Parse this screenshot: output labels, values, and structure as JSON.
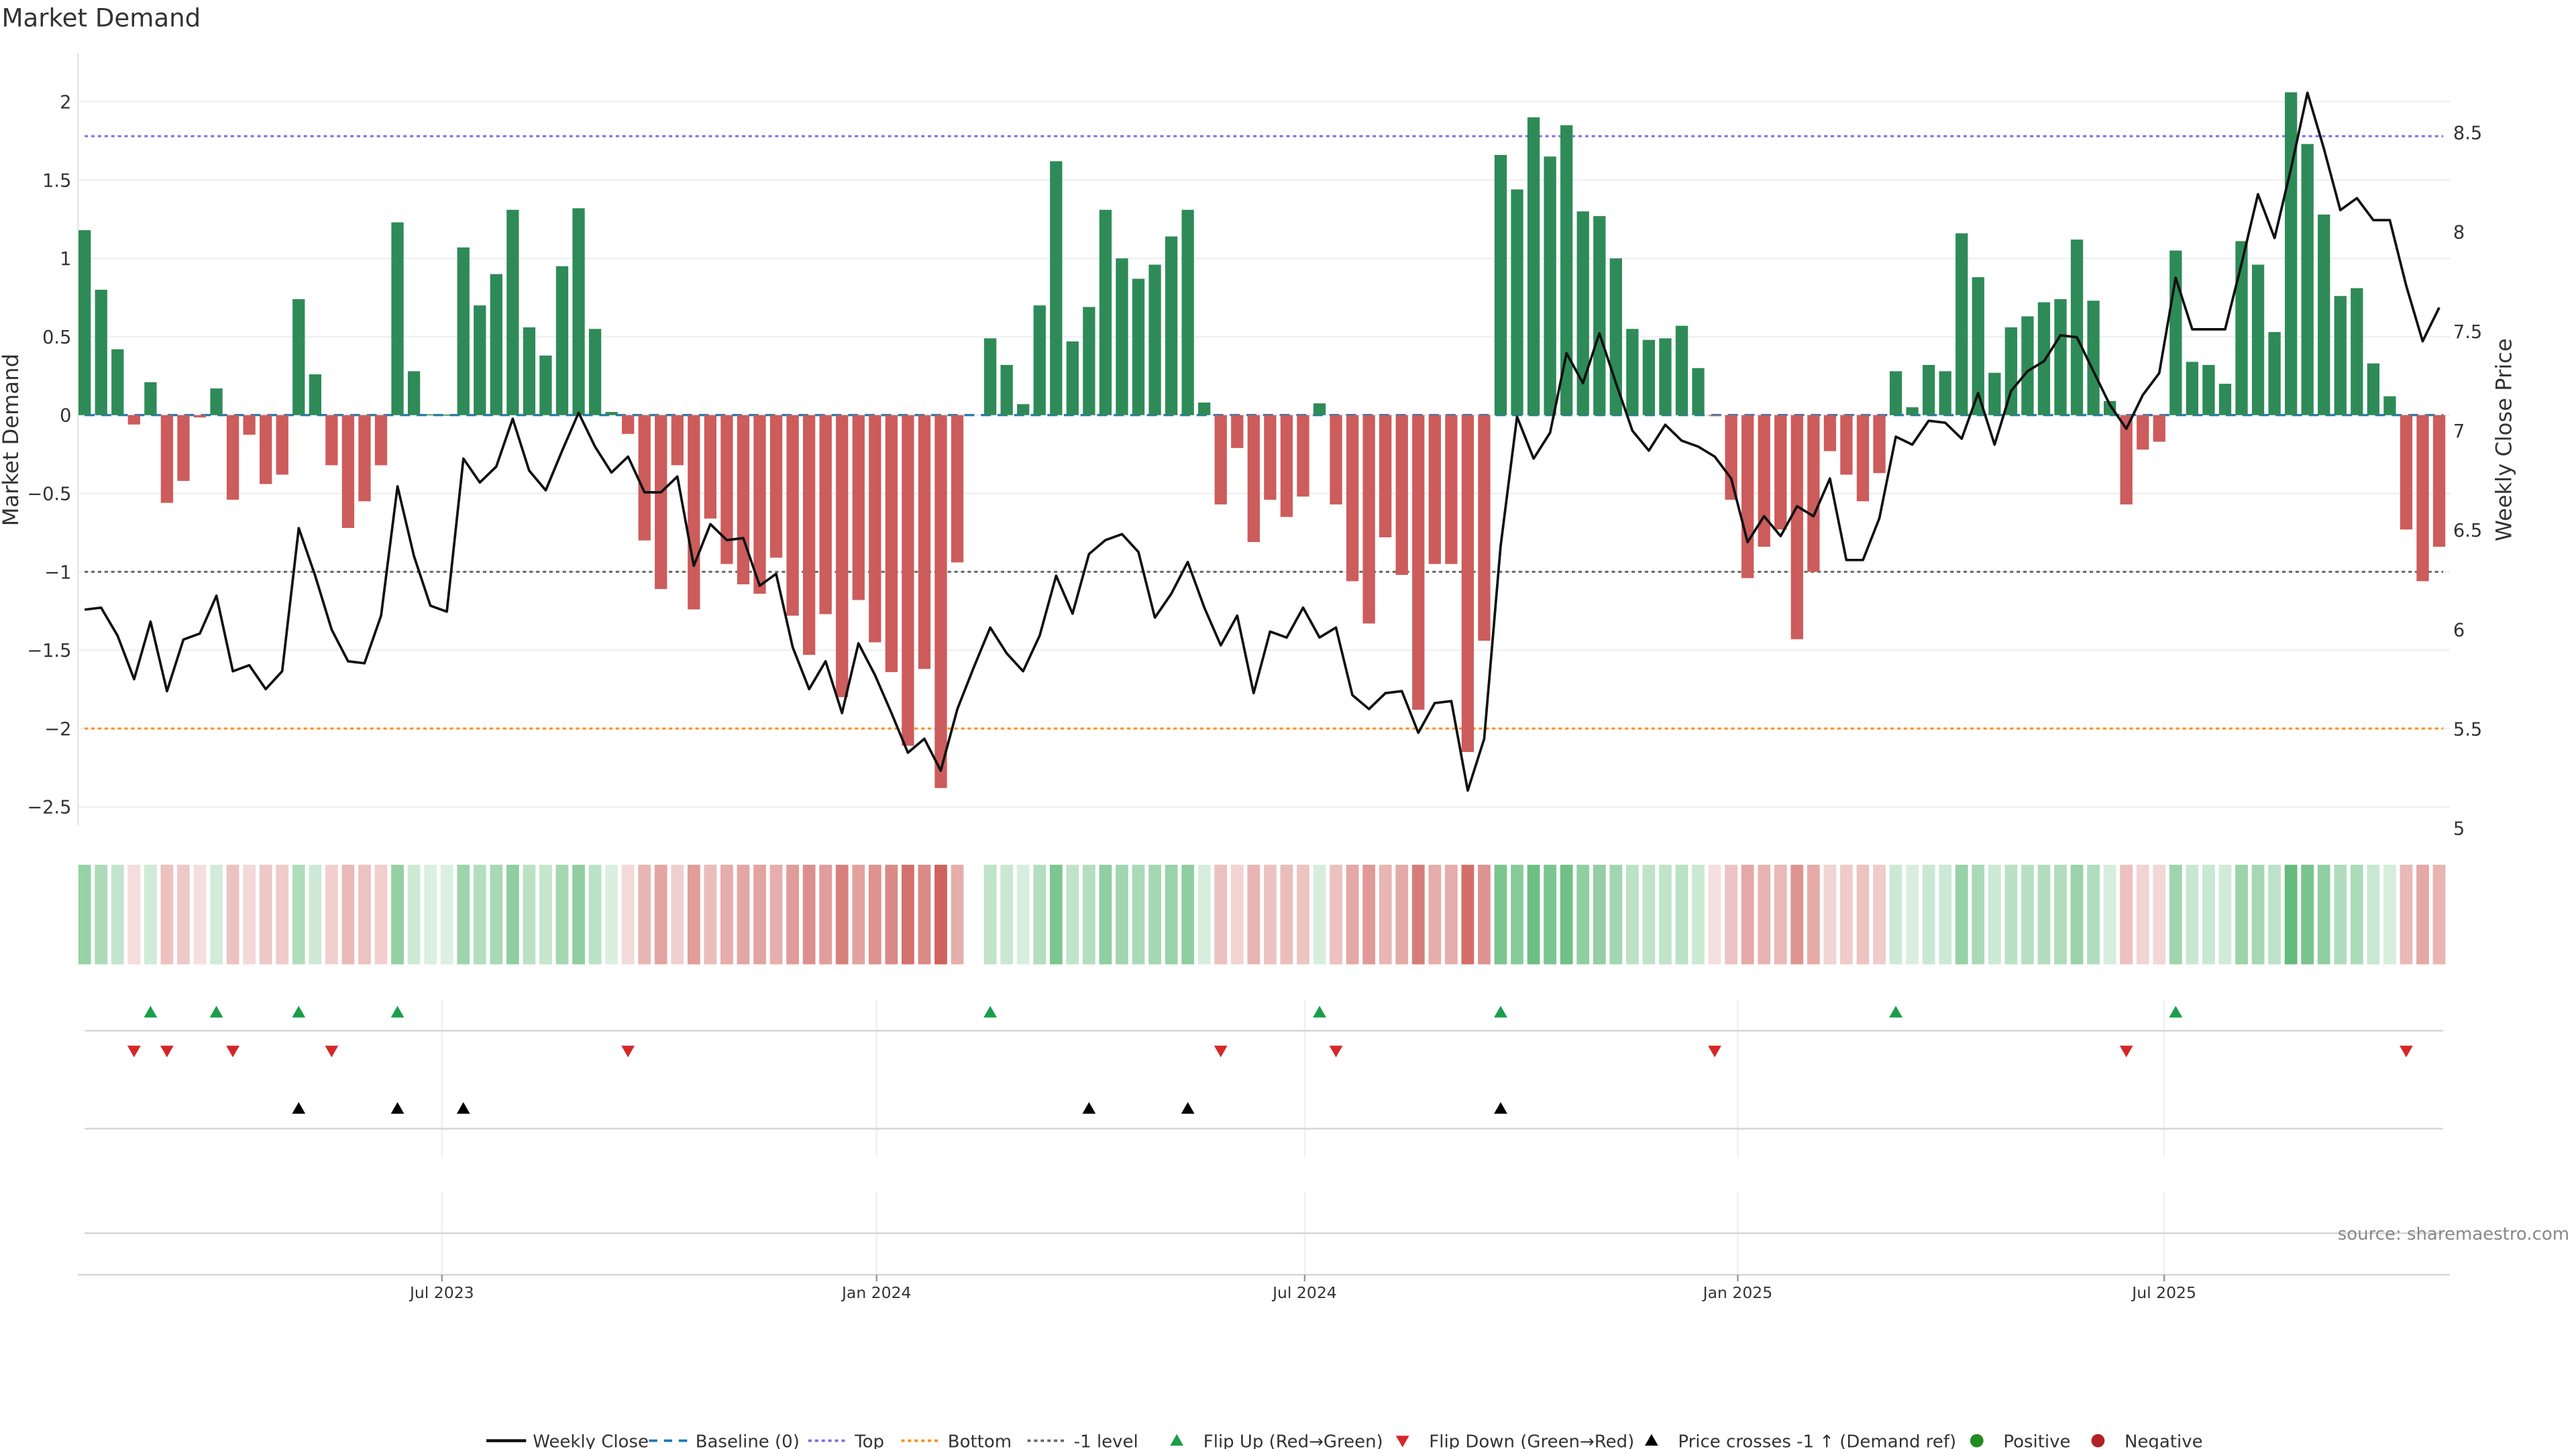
{
  "chart_data": {
    "type": "bar",
    "title": "Market Demand",
    "ylabel": "Market Demand",
    "y2label": "Weekly Close Price",
    "ylim": [
      -2.7,
      2.31
    ],
    "y2lim": [
      4.95,
      8.9
    ],
    "yticks": [
      2,
      1.5,
      1,
      0.5,
      0,
      -0.5,
      -1,
      -1.5,
      -2,
      -2.5
    ],
    "ytick_labels": [
      "2",
      "1.5",
      "1",
      "0.5",
      "0",
      "−0.5",
      "−1",
      "−1.5",
      "−2",
      "−2.5"
    ],
    "y2ticks": [
      8.5,
      8,
      7.5,
      7,
      6.5,
      6,
      5.5,
      5
    ],
    "y2tick_labels": [
      "8.5",
      "8",
      "7.5",
      "7",
      "6.5",
      "6",
      "5.5",
      "5"
    ],
    "x_unit": "week index (1 = first bar)",
    "xticks": [
      {
        "label": "Jul 2023",
        "at": 22.7
      },
      {
        "label": "Jan 2024",
        "at": 49.1
      },
      {
        "label": "Jul 2024",
        "at": 75.1
      },
      {
        "label": "Jan 2025",
        "at": 101.4
      },
      {
        "label": "Jul 2025",
        "at": 127.3
      }
    ],
    "levels": {
      "baseline": 0,
      "top": 1.78,
      "bottom": -2.0,
      "minus_one": -1.0
    },
    "demand": [
      1.18,
      0.8,
      0.42,
      -0.06,
      0.21,
      -0.56,
      -0.42,
      -0.015,
      0.17,
      -0.54,
      -0.125,
      -0.44,
      -0.38,
      0.74,
      0.26,
      -0.32,
      -0.72,
      -0.55,
      -0.32,
      1.23,
      0.28,
      0.005,
      0.003,
      1.07,
      0.7,
      0.9,
      1.31,
      0.56,
      0.38,
      0.95,
      1.32,
      0.55,
      0.02,
      -0.12,
      -0.8,
      -1.11,
      -0.32,
      -1.24,
      -0.66,
      -0.95,
      -1.08,
      -1.14,
      -0.91,
      -1.28,
      -1.53,
      -1.27,
      -1.8,
      -1.18,
      -1.45,
      -1.64,
      -2.11,
      -1.62,
      -2.38,
      -0.94,
      null,
      0.49,
      0.32,
      0.07,
      0.7,
      1.62,
      0.47,
      0.69,
      1.31,
      1.0,
      0.87,
      0.96,
      1.14,
      1.31,
      0.08,
      -0.57,
      -0.21,
      -0.81,
      -0.54,
      -0.65,
      -0.52,
      0.075,
      -0.57,
      -1.06,
      -1.33,
      -0.78,
      -1.02,
      -1.88,
      -0.95,
      -0.95,
      -2.15,
      -1.44,
      1.66,
      1.44,
      1.9,
      1.65,
      1.85,
      1.3,
      1.27,
      1.0,
      0.55,
      0.48,
      0.49,
      0.57,
      0.3,
      -0.005,
      -0.54,
      -1.04,
      -0.84,
      -0.73,
      -1.43,
      -1.0,
      -0.23,
      -0.38,
      -0.55,
      -0.37,
      0.28,
      0.05,
      0.32,
      0.28,
      1.16,
      0.88,
      0.27,
      0.56,
      0.63,
      0.72,
      0.74,
      1.12,
      0.73,
      0.09,
      -0.57,
      -0.22,
      -0.17,
      1.05,
      0.34,
      0.32,
      0.2,
      1.11,
      0.96,
      0.53,
      2.06,
      1.73,
      1.28,
      0.76,
      0.81,
      0.33,
      0.12,
      -0.73,
      -1.06,
      -0.84
    ],
    "weekly_close": [
      6.1,
      6.11,
      5.97,
      5.75,
      6.04,
      5.69,
      5.95,
      5.98,
      6.17,
      5.79,
      5.82,
      5.7,
      5.79,
      6.51,
      6.27,
      6.0,
      5.84,
      5.83,
      6.07,
      6.72,
      6.37,
      6.12,
      6.09,
      6.86,
      6.74,
      6.82,
      7.06,
      6.8,
      6.7,
      6.9,
      7.09,
      6.92,
      6.79,
      6.87,
      6.69,
      6.69,
      6.77,
      6.32,
      6.53,
      6.45,
      6.46,
      6.22,
      6.28,
      5.91,
      5.7,
      5.84,
      5.58,
      5.93,
      5.77,
      5.58,
      5.38,
      5.45,
      5.29,
      5.6,
      5.81,
      6.01,
      5.88,
      5.79,
      5.97,
      6.27,
      6.08,
      6.38,
      6.45,
      6.48,
      6.39,
      6.06,
      6.18,
      6.34,
      6.11,
      5.92,
      6.07,
      5.68,
      5.99,
      5.96,
      6.11,
      5.96,
      6.01,
      5.67,
      5.6,
      5.68,
      5.69,
      5.48,
      5.63,
      5.64,
      5.19,
      5.45,
      6.42,
      7.07,
      6.86,
      6.99,
      7.39,
      7.24,
      7.49,
      7.24,
      7.0,
      6.9,
      7.03,
      6.95,
      6.92,
      6.87,
      6.76,
      6.44,
      6.57,
      6.47,
      6.62,
      6.57,
      6.76,
      6.35,
      6.35,
      6.56,
      6.97,
      6.93,
      7.05,
      7.04,
      6.96,
      7.19,
      6.93,
      7.2,
      7.3,
      7.35,
      7.48,
      7.47,
      7.3,
      7.13,
      7.01,
      7.18,
      7.29,
      7.77,
      7.51,
      7.51,
      7.51,
      7.84,
      8.19,
      7.97,
      8.32,
      8.7,
      8.42,
      8.11,
      8.17,
      8.06,
      8.06,
      7.73,
      7.45,
      7.62
    ],
    "flip_up_weeks": [
      5,
      9,
      14,
      20,
      56,
      76,
      87,
      111,
      128
    ],
    "flip_down_weeks": [
      4,
      6,
      10,
      16,
      34,
      70,
      77,
      100,
      125,
      142
    ],
    "price_cross_weeks": [
      14,
      20,
      24,
      62,
      68,
      87
    ],
    "legend": {
      "position": "bottom-center",
      "items": [
        "Weekly Close",
        "Baseline (0)",
        "Top",
        "Bottom",
        "-1 level",
        "Flip Up (Red→Green)",
        "Flip Down (Green→Red)",
        "Price crosses -1 ↑ (Demand ref)",
        "Positive",
        "Negative"
      ]
    },
    "source": "source: sharemaestro.com",
    "colors": {
      "positive": "#2e8b57",
      "negative": "#cd5c5c",
      "line": "#111111",
      "baseline": "#1f77b4",
      "top": "#7b68ee",
      "bottom": "#ff8c00",
      "minus_one": "#666666",
      "flip_up": "#1a9e4a",
      "flip_down": "#d62728",
      "cross": "#000000",
      "pos_dot": "#228b22",
      "neg_dot": "#b22222"
    }
  }
}
